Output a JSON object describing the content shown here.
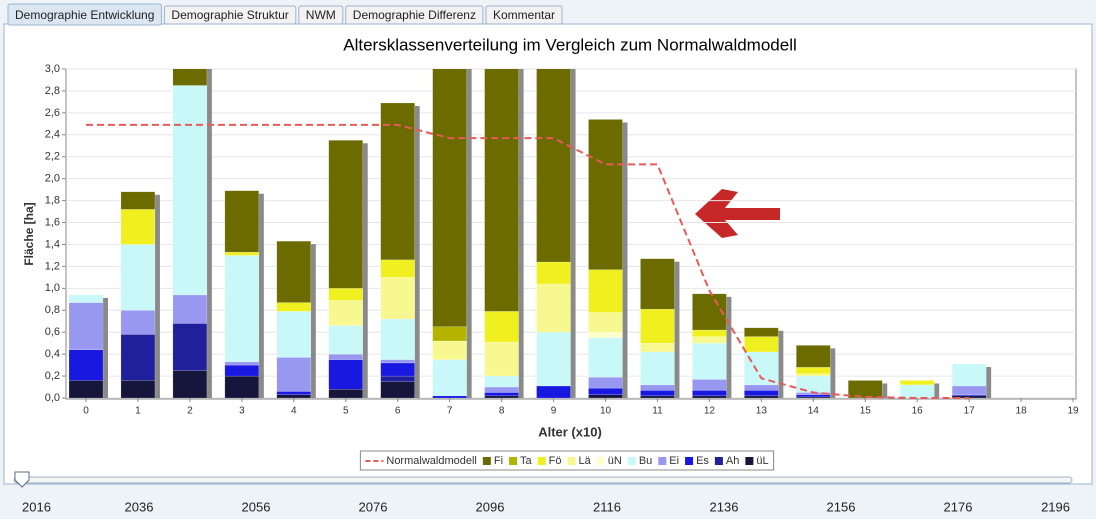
{
  "tabs": [
    "Demographie Entwicklung",
    "Demographie Struktur",
    "NWM",
    "Demographie Differenz",
    "Kommentar"
  ],
  "active_tab": 0,
  "chart_data": {
    "type": "bar",
    "stacked": true,
    "title": "Altersklassenverteilung im Vergleich zum Normalwaldmodell",
    "x_label": "Alter (x10)",
    "y_label": "Fläche [ha]",
    "categories": [
      "0",
      "1",
      "2",
      "3",
      "4",
      "5",
      "6",
      "7",
      "8",
      "9",
      "10",
      "11",
      "12",
      "13",
      "14",
      "15",
      "16",
      "17",
      "18",
      "19"
    ],
    "ylim": [
      0,
      3.0
    ],
    "yticks": [
      {
        "value": 0,
        "label": "0,0"
      },
      {
        "value": 0.2,
        "label": "0,2"
      },
      {
        "value": 0.4,
        "label": "0,4"
      },
      {
        "value": 0.6,
        "label": "0,6"
      },
      {
        "value": 0.8,
        "label": "0,8"
      },
      {
        "value": 1.0,
        "label": "1,0"
      },
      {
        "value": 1.2,
        "label": "1,2"
      },
      {
        "value": 1.4,
        "label": "1,4"
      },
      {
        "value": 1.6,
        "label": "1,6"
      },
      {
        "value": 1.8,
        "label": "1,8"
      },
      {
        "value": 2.0,
        "label": "2,0"
      },
      {
        "value": 2.2,
        "label": "2,2"
      },
      {
        "value": 2.4,
        "label": "2,4"
      },
      {
        "value": 2.6,
        "label": "2,6"
      },
      {
        "value": 2.8,
        "label": "2,8"
      },
      {
        "value": 3.0,
        "label": "3,0"
      }
    ],
    "grid": true,
    "legend": "bottom",
    "series": [
      {
        "name": "Normalwaldmodell",
        "type": "line",
        "color": "#e85a5a",
        "values": [
          2.49,
          2.49,
          2.49,
          2.49,
          2.49,
          2.49,
          2.49,
          2.37,
          2.37,
          2.37,
          2.13,
          2.13,
          0.98,
          0.18,
          0.05,
          0.01,
          0,
          0,
          null,
          null
        ]
      },
      {
        "name": "Fi",
        "color": "#6b6b00",
        "values": [
          0,
          0.16,
          0.2,
          0.56,
          0.56,
          1.35,
          1.43,
          2.4,
          2.26,
          1.81,
          1.37,
          0.46,
          0.33,
          0.08,
          0.2,
          0.16,
          0,
          0,
          0,
          0
        ]
      },
      {
        "name": "Ta",
        "color": "#b4b400",
        "values": [
          0,
          0,
          0,
          0,
          0,
          0,
          0,
          0.13,
          0,
          0,
          0,
          0,
          0,
          0,
          0,
          0,
          0,
          0,
          0,
          0
        ]
      },
      {
        "name": "Fö",
        "color": "#f0f020",
        "values": [
          0,
          0.32,
          0,
          0.03,
          0.08,
          0.11,
          0.16,
          0,
          0.28,
          0.2,
          0.39,
          0.31,
          0.06,
          0.14,
          0.06,
          0,
          0.04,
          0,
          0,
          0
        ]
      },
      {
        "name": "Lä",
        "color": "#f8f890",
        "values": [
          0,
          0,
          0,
          0,
          0,
          0.23,
          0.38,
          0.17,
          0.31,
          0.44,
          0.18,
          0.08,
          0.06,
          0,
          0.02,
          0,
          0,
          0,
          0,
          0
        ]
      },
      {
        "name": "üN",
        "color": "#ffffcc",
        "values": [
          0,
          0,
          0,
          0,
          0,
          0,
          0,
          0,
          0,
          0,
          0.05,
          0,
          0,
          0,
          0,
          0,
          0,
          0,
          0,
          0
        ]
      },
      {
        "name": "Bu",
        "color": "#c8f8f8",
        "values": [
          0.07,
          0.6,
          1.91,
          0.97,
          0.42,
          0.26,
          0.37,
          0.33,
          0.1,
          0.49,
          0.36,
          0.3,
          0.33,
          0.3,
          0.15,
          0,
          0.12,
          0.2,
          0,
          0
        ]
      },
      {
        "name": "Ei",
        "color": "#9898f0",
        "values": [
          0.43,
          0.22,
          0.26,
          0.03,
          0.31,
          0.05,
          0.03,
          0,
          0.05,
          0,
          0.1,
          0.05,
          0.1,
          0.05,
          0.02,
          0,
          0,
          0.08,
          0,
          0
        ]
      },
      {
        "name": "Es",
        "color": "#1818e0",
        "values": [
          0.28,
          0,
          0,
          0.1,
          0.03,
          0.27,
          0.12,
          0.02,
          0.03,
          0.11,
          0.06,
          0.05,
          0.05,
          0.05,
          0.02,
          0,
          0,
          0.01,
          0,
          0
        ]
      },
      {
        "name": "Ah",
        "color": "#20209c",
        "values": [
          0,
          0.42,
          0.43,
          0,
          0,
          0,
          0.05,
          0,
          0,
          0,
          0,
          0,
          0,
          0,
          0,
          0,
          0,
          0,
          0,
          0
        ]
      },
      {
        "name": "üL",
        "color": "#16163c",
        "values": [
          0.16,
          0.16,
          0.25,
          0.2,
          0.03,
          0.08,
          0.15,
          0,
          0.02,
          0,
          0.03,
          0.02,
          0.02,
          0.02,
          0.01,
          0,
          0,
          0.02,
          0,
          0
        ]
      }
    ]
  },
  "slider": {
    "xlim": [
      2016,
      2196
    ],
    "ticks": [
      2016,
      2036,
      2056,
      2076,
      2096,
      2116,
      2136,
      2156,
      2176,
      2196
    ],
    "value": 2016
  }
}
